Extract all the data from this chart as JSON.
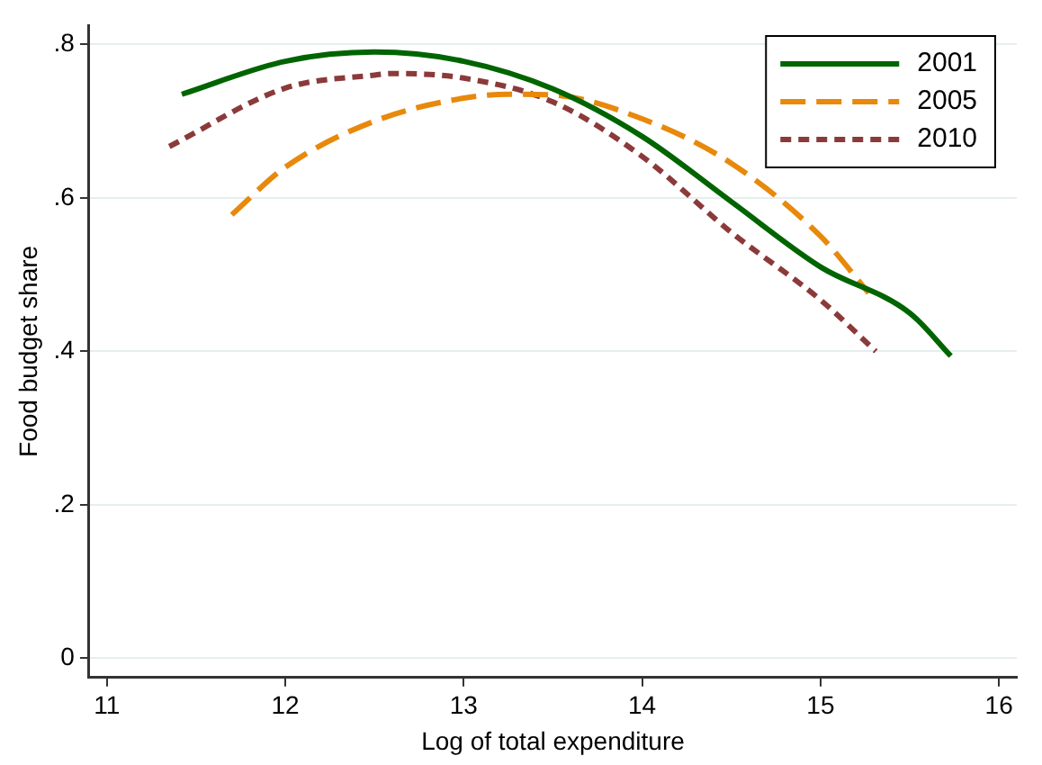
{
  "chart_data": {
    "type": "line",
    "xlabel": "Log of total expenditure",
    "ylabel": "Food budget share",
    "xlim": [
      10.9,
      16.1
    ],
    "xticks": [
      11,
      12,
      13,
      14,
      15,
      16
    ],
    "ylim": [
      -0.025,
      0.825
    ],
    "yticks": [
      {
        "value": 0,
        "label": "0"
      },
      {
        "value": 0.2,
        "label": ".2"
      },
      {
        "value": 0.4,
        "label": ".4"
      },
      {
        "value": 0.6,
        "label": ".6"
      },
      {
        "value": 0.8,
        "label": ".8"
      }
    ],
    "grid": "y",
    "legend": "top right",
    "marker": "none",
    "series": [
      {
        "name": "2001",
        "color": "#006400",
        "line_style": "solid",
        "x": [
          11.42,
          12,
          12.5,
          13,
          13.5,
          14,
          14.5,
          15,
          15.5,
          15.73
        ],
        "values": [
          0.735,
          0.778,
          0.79,
          0.778,
          0.742,
          0.68,
          0.595,
          0.51,
          0.45,
          0.394
        ]
      },
      {
        "name": "2005",
        "color": "#e8890c",
        "line_style": "dashed",
        "x": [
          11.7,
          12,
          12.5,
          13,
          13.25,
          13.5,
          14,
          14.5,
          15,
          15.27
        ],
        "values": [
          0.578,
          0.64,
          0.7,
          0.73,
          0.735,
          0.734,
          0.703,
          0.645,
          0.55,
          0.476
        ]
      },
      {
        "name": "2010",
        "color": "#8b3a3a",
        "line_style": "dotted",
        "x": [
          11.35,
          12,
          12.5,
          12.6,
          13,
          13.5,
          14,
          14.5,
          15,
          15.31
        ],
        "values": [
          0.667,
          0.743,
          0.76,
          0.762,
          0.756,
          0.725,
          0.654,
          0.555,
          0.467,
          0.4
        ]
      }
    ]
  }
}
